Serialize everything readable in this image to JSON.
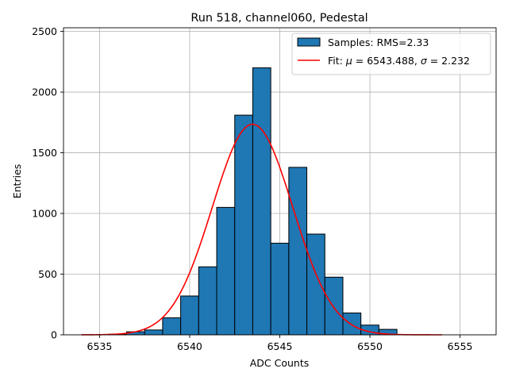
{
  "chart_data": {
    "type": "histogram",
    "title": "Run 518, channel060, Pedestal",
    "xlabel": "ADC Counts",
    "ylabel": "Entries",
    "xlim": [
      6533,
      6557
    ],
    "ylim": [
      0,
      2530
    ],
    "grid": true,
    "legend_position": "top-right",
    "x_ticks": [
      6535,
      6540,
      6545,
      6550,
      6555
    ],
    "y_ticks": [
      0,
      500,
      1000,
      1500,
      2000,
      2500
    ],
    "histogram": {
      "name": "Samples: RMS=2.33",
      "bin_edges": [
        6535.5,
        6536.5,
        6537.5,
        6538.5,
        6539.5,
        6540.5,
        6541.5,
        6542.5,
        6543.5,
        6544.5,
        6545.5,
        6546.5,
        6547.5,
        6548.5,
        6549.5,
        6550.5
      ],
      "counts": [
        5,
        25,
        40,
        140,
        320,
        560,
        1050,
        1810,
        2200,
        755,
        1380,
        830,
        475,
        180,
        80,
        45
      ],
      "bin_start": 6535.5,
      "bin_width": 1,
      "color": "#1f77b4",
      "edgecolor": "#000000"
    },
    "fit": {
      "name": "Fit: $\\mu$ = 6543.488, $\\sigma$ = 2.232",
      "legend_prefix": "Fit: ",
      "mu_symbol": "μ",
      "mu_text": " = 6543.488, ",
      "sigma_symbol": "σ",
      "sigma_text": " = 2.232",
      "mu": 6543.488,
      "sigma": 2.232,
      "amplitude": 1735,
      "x_range": [
        6534,
        6554
      ],
      "color": "#ff0000"
    },
    "legend": {
      "hist_label": "Samples: RMS=2.33"
    }
  }
}
